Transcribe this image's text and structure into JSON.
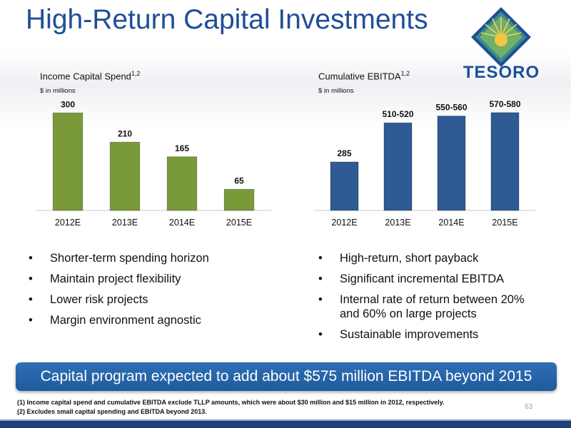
{
  "slide": {
    "title": "High-Return Capital Investments",
    "logo_text": "TESORO",
    "banner": "Capital program expected to add about $575 million EBITDA beyond 2015",
    "footnotes": [
      "(1)  Income capital spend and cumulative EBITDA exclude TLLP amounts, which were about $30 million and $15 million in 2012, respectively.",
      "(2)  Excludes small capital spending and EBITDA beyond 2013."
    ],
    "page_number": "63",
    "bullet_glyph": "•",
    "left_bullets": [
      "Shorter-term spending horizon",
      "Maintain project flexibility",
      "Lower risk projects",
      "Margin environment agnostic"
    ],
    "right_bullets": [
      "High-return, short payback",
      "Significant incremental EBITDA",
      "Internal rate of return between 20% and 60% on large projects",
      "Sustainable improvements"
    ],
    "colors": {
      "title": "#1f4e96",
      "green_bar": "#7a9a3a",
      "blue_bar": "#2f5a94",
      "banner": "#1e5a9e"
    }
  },
  "chart_data": [
    {
      "type": "bar",
      "title": "Income Capital Spend",
      "title_superscript": "1,2",
      "subtitle": "$ in millions",
      "categories": [
        "2012E",
        "2013E",
        "2014E",
        "2015E"
      ],
      "values": [
        300,
        210,
        165,
        65
      ],
      "labels": [
        "300",
        "210",
        "165",
        "65"
      ],
      "ylim": [
        0,
        340
      ],
      "color": "#7a9a3a",
      "grid": false
    },
    {
      "type": "bar",
      "title": "Cumulative EBITDA",
      "title_superscript": "1,2",
      "subtitle": "$ in millions",
      "categories": [
        "2012E",
        "2013E",
        "2014E",
        "2015E"
      ],
      "values": [
        285,
        515,
        555,
        575
      ],
      "labels": [
        "285",
        "510-520",
        "550-560",
        "570-580"
      ],
      "ylim": [
        0,
        650
      ],
      "color": "#2f5a94",
      "grid": false
    }
  ]
}
